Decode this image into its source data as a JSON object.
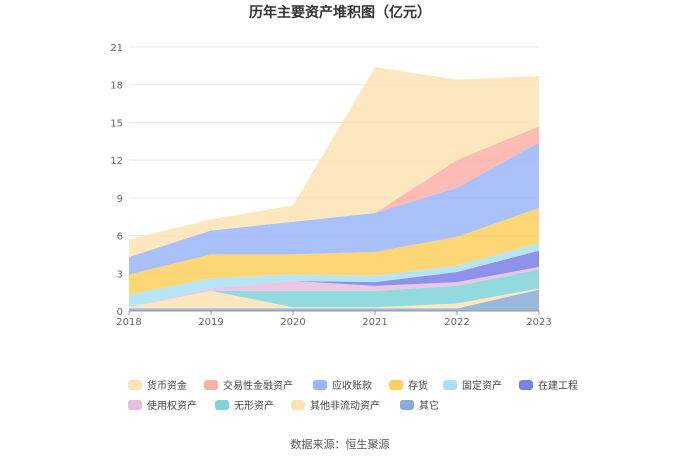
{
  "chart_data": {
    "type": "area",
    "stacked": true,
    "title": "历年主要资产堆积图（亿元）",
    "x": [
      "2018",
      "2019",
      "2020",
      "2021",
      "2022",
      "2023"
    ],
    "ylim": [
      0,
      21
    ],
    "yticks": [
      0,
      3,
      6,
      9,
      12,
      15,
      18,
      21
    ],
    "grid": true,
    "legend_position": "bottom",
    "series_stack_order": "bottom-to-top: 其它, 其他非流动资产, 无形资产, 使用权资产, 在建工程, 固定资产, 存货, 应收账款, 交易性金融资产, 货币资金",
    "series": [
      {
        "name": "其它",
        "color": "#8aaad8",
        "values": [
          0.2,
          0.2,
          0.2,
          0.2,
          0.2,
          1.7
        ]
      },
      {
        "name": "其他非流动资产",
        "color": "#fde3b4",
        "values": [
          0.1,
          1.4,
          0.1,
          0.1,
          0.4,
          0.1
        ]
      },
      {
        "name": "无形资产",
        "color": "#80d4d8",
        "values": [
          0.0,
          0.0,
          1.3,
          1.3,
          1.4,
          1.5
        ]
      },
      {
        "name": "使用权资产",
        "color": "#e9bde0",
        "values": [
          0.0,
          0.2,
          0.8,
          0.4,
          0.3,
          0.2
        ]
      },
      {
        "name": "在建工程",
        "color": "#7b7fe8",
        "values": [
          0.0,
          0.0,
          0.0,
          0.3,
          0.8,
          1.3
        ]
      },
      {
        "name": "固定资产",
        "color": "#a9e0f7",
        "values": [
          1.0,
          0.8,
          0.5,
          0.5,
          0.5,
          0.6
        ]
      },
      {
        "name": "存货",
        "color": "#fdcf5e",
        "values": [
          1.6,
          1.9,
          1.6,
          1.9,
          2.3,
          2.8
        ]
      },
      {
        "name": "应收账款",
        "color": "#9ab5f7",
        "values": [
          1.4,
          1.9,
          2.6,
          3.1,
          3.9,
          5.2
        ]
      },
      {
        "name": "交易性金融资产",
        "color": "#f9b0a8",
        "values": [
          0.0,
          0.0,
          0.0,
          0.0,
          2.2,
          1.3
        ]
      },
      {
        "name": "货币资金",
        "color": "#fde3b4",
        "values": [
          1.4,
          0.9,
          1.3,
          11.6,
          6.4,
          4.0
        ]
      }
    ]
  },
  "legend_rows": [
    [
      "货币资金",
      "交易性金融资产",
      "应收账款",
      "存货",
      "固定资产",
      "在建工程"
    ],
    [
      "使用权资产",
      "无形资产",
      "其他非流动资产",
      "其它"
    ]
  ],
  "source_text": "数据来源：恒生聚源"
}
